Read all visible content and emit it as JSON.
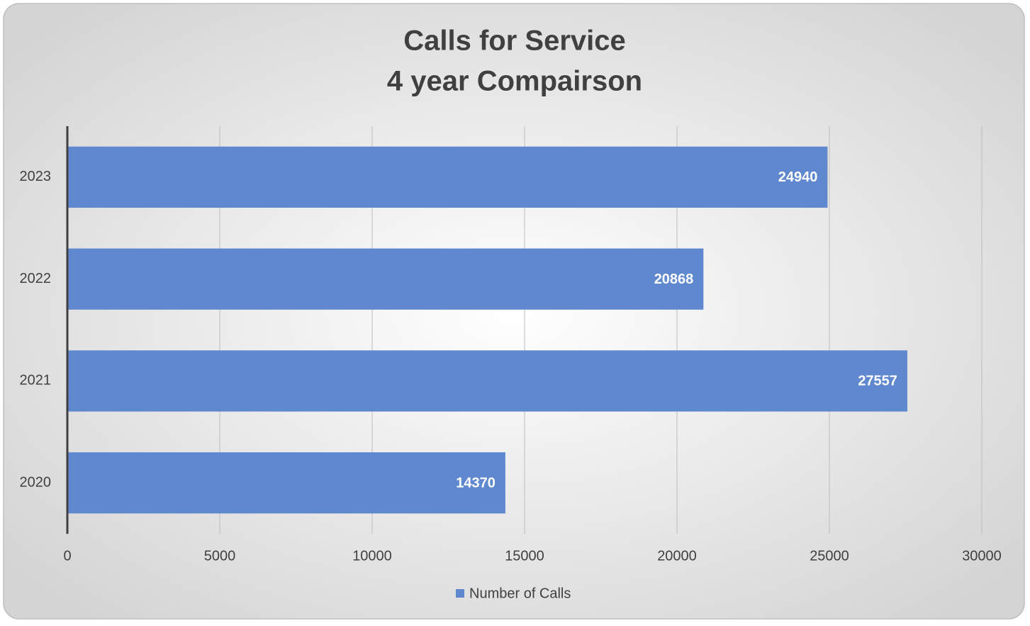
{
  "chart_data": {
    "type": "bar",
    "orientation": "horizontal",
    "title": [
      "Calls for Service",
      "4 year Compairson"
    ],
    "categories": [
      "2023",
      "2022",
      "2021",
      "2020"
    ],
    "series": [
      {
        "name": "Number of Calls",
        "color": "#5f88cf",
        "values": [
          24940,
          20868,
          27557,
          14370
        ]
      }
    ],
    "xlim": [
      0,
      30000
    ],
    "xticks": [
      0,
      5000,
      10000,
      15000,
      20000,
      25000,
      30000
    ],
    "grid": true,
    "legend": "bottom"
  }
}
